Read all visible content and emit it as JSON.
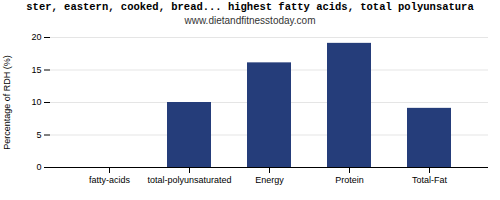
{
  "chart_data": {
    "type": "bar",
    "title": "ster, eastern, cooked, bread... highest fatty acids, total polyunsatura",
    "subtitle": "www.dietandfitnesstoday.com",
    "ylabel": "Percentage of RDH (%)",
    "categories": [
      "fatty-acids",
      "total-polyunsaturated",
      "Energy",
      "Protein",
      "Total-Fat"
    ],
    "values": [
      0.0,
      10.0,
      16.1,
      19.1,
      9.1
    ],
    "color": "#253d7a",
    "ylim": [
      0,
      20
    ],
    "yticks": [
      0,
      5,
      10,
      15,
      20
    ],
    "grid": true
  }
}
